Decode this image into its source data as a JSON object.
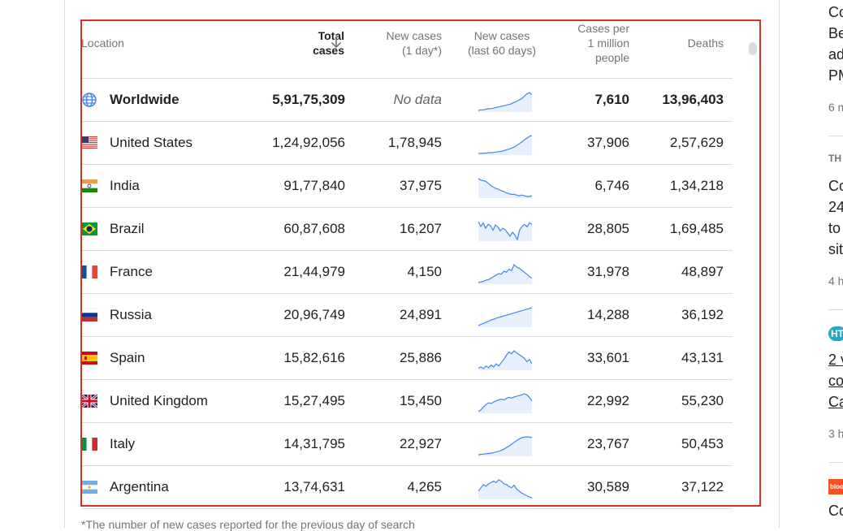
{
  "header": {
    "location": "Location",
    "total_cases_line1": "Total",
    "total_cases_line2": "cases",
    "new_cases_line1": "New cases",
    "new_cases_line2": "(1 day*)",
    "new_cases_60_line1": "New cases",
    "new_cases_60_line2": "(last 60 days)",
    "per_million_line1": "Cases per",
    "per_million_line2": "1 million",
    "per_million_line3": "people",
    "deaths": "Deaths"
  },
  "rows": [
    {
      "name": "Worldwide",
      "flag": "globe-icon",
      "total": "5,91,75,309",
      "new": "No data",
      "per_million": "7,610",
      "deaths": "13,96,403",
      "trend": [
        30,
        31,
        31,
        32,
        33,
        33,
        34,
        35,
        36,
        37,
        38,
        39,
        40,
        41,
        43,
        45,
        47,
        49,
        52,
        56,
        60,
        62,
        58
      ]
    },
    {
      "name": "United States",
      "flag": "flag-us-icon",
      "total": "1,24,92,056",
      "new": "1,78,945",
      "per_million": "37,906",
      "deaths": "2,57,629",
      "trend": [
        20,
        20,
        21,
        21,
        22,
        22,
        23,
        24,
        25,
        26,
        28,
        30,
        32,
        35,
        38,
        42,
        47,
        52,
        58,
        63,
        68,
        70
      ]
    },
    {
      "name": "India",
      "flag": "flag-in-icon",
      "total": "91,77,840",
      "new": "37,975",
      "per_million": "6,746",
      "deaths": "1,34,218",
      "trend": [
        70,
        68,
        67,
        66,
        63,
        60,
        58,
        56,
        55,
        53,
        52,
        50,
        49,
        48,
        48,
        47,
        46,
        47,
        46,
        45,
        45,
        46
      ]
    },
    {
      "name": "Brazil",
      "flag": "flag-br-icon",
      "total": "60,87,608",
      "new": "16,207",
      "per_million": "28,805",
      "deaths": "1,69,485",
      "trend": [
        62,
        55,
        60,
        52,
        58,
        56,
        49,
        57,
        54,
        48,
        52,
        50,
        45,
        40,
        46,
        42,
        35,
        50,
        55,
        58,
        54,
        60,
        58
      ]
    },
    {
      "name": "France",
      "flag": "flag-fr-icon",
      "total": "21,44,979",
      "new": "4,150",
      "per_million": "31,978",
      "deaths": "48,897",
      "trend": [
        10,
        12,
        14,
        18,
        20,
        25,
        30,
        35,
        40,
        38,
        48,
        45,
        55,
        50,
        70,
        62,
        58,
        52,
        45,
        38,
        30,
        25
      ]
    },
    {
      "name": "Russia",
      "flag": "flag-ru-icon",
      "total": "20,96,749",
      "new": "24,891",
      "per_million": "14,288",
      "deaths": "36,192",
      "trend": [
        20,
        23,
        26,
        29,
        32,
        35,
        37,
        40,
        42,
        44,
        46,
        48,
        50,
        52,
        54,
        56,
        58,
        60,
        62,
        64,
        66,
        68
      ]
    },
    {
      "name": "Spain",
      "flag": "flag-es-icon",
      "total": "15,82,616",
      "new": "25,886",
      "per_million": "33,601",
      "deaths": "43,131",
      "trend": [
        25,
        28,
        24,
        30,
        26,
        32,
        28,
        35,
        30,
        38,
        45,
        55,
        62,
        58,
        65,
        60,
        56,
        52,
        48,
        40,
        45,
        35
      ]
    },
    {
      "name": "United Kingdom",
      "flag": "flag-gb-icon",
      "total": "15,27,495",
      "new": "15,450",
      "per_million": "22,992",
      "deaths": "55,230",
      "trend": [
        15,
        20,
        28,
        35,
        40,
        38,
        42,
        45,
        48,
        50,
        48,
        52,
        55,
        53,
        56,
        58,
        60,
        62,
        65,
        62,
        55,
        45
      ]
    },
    {
      "name": "Italy",
      "flag": "flag-it-icon",
      "total": "14,31,795",
      "new": "22,927",
      "per_million": "23,767",
      "deaths": "50,453",
      "trend": [
        5,
        6,
        7,
        8,
        9,
        10,
        12,
        14,
        16,
        19,
        23,
        28,
        33,
        39,
        45,
        51,
        56,
        60,
        62,
        63,
        62,
        61
      ]
    },
    {
      "name": "Argentina",
      "flag": "flag-ar-icon",
      "total": "13,74,631",
      "new": "4,265",
      "per_million": "30,589",
      "deaths": "37,122",
      "trend": [
        45,
        50,
        55,
        52,
        56,
        58,
        60,
        58,
        62,
        60,
        56,
        55,
        52,
        50,
        54,
        48,
        45,
        42,
        40,
        38,
        36,
        35
      ]
    }
  ],
  "footnote": "*The number of new cases reported for the previous day of search",
  "news": [
    {
      "title_lines": [
        "Co",
        "Be",
        "ad",
        "PM"
      ],
      "meta": "6 m",
      "source": ""
    },
    {
      "title_lines": [
        "Co",
        "24",
        "to",
        "sit"
      ],
      "meta": "4 h",
      "source": "TH"
    },
    {
      "title_lines": [
        "2 v",
        "co",
        "Ca"
      ],
      "meta": "3 h",
      "source": "HT"
    },
    {
      "title_lines": [
        "Co"
      ],
      "meta": "",
      "source": "bloo"
    }
  ],
  "colors": {
    "highlight": "#d93025",
    "spark_line": "#4285f4",
    "spark_fill": "#e8f0fe"
  }
}
